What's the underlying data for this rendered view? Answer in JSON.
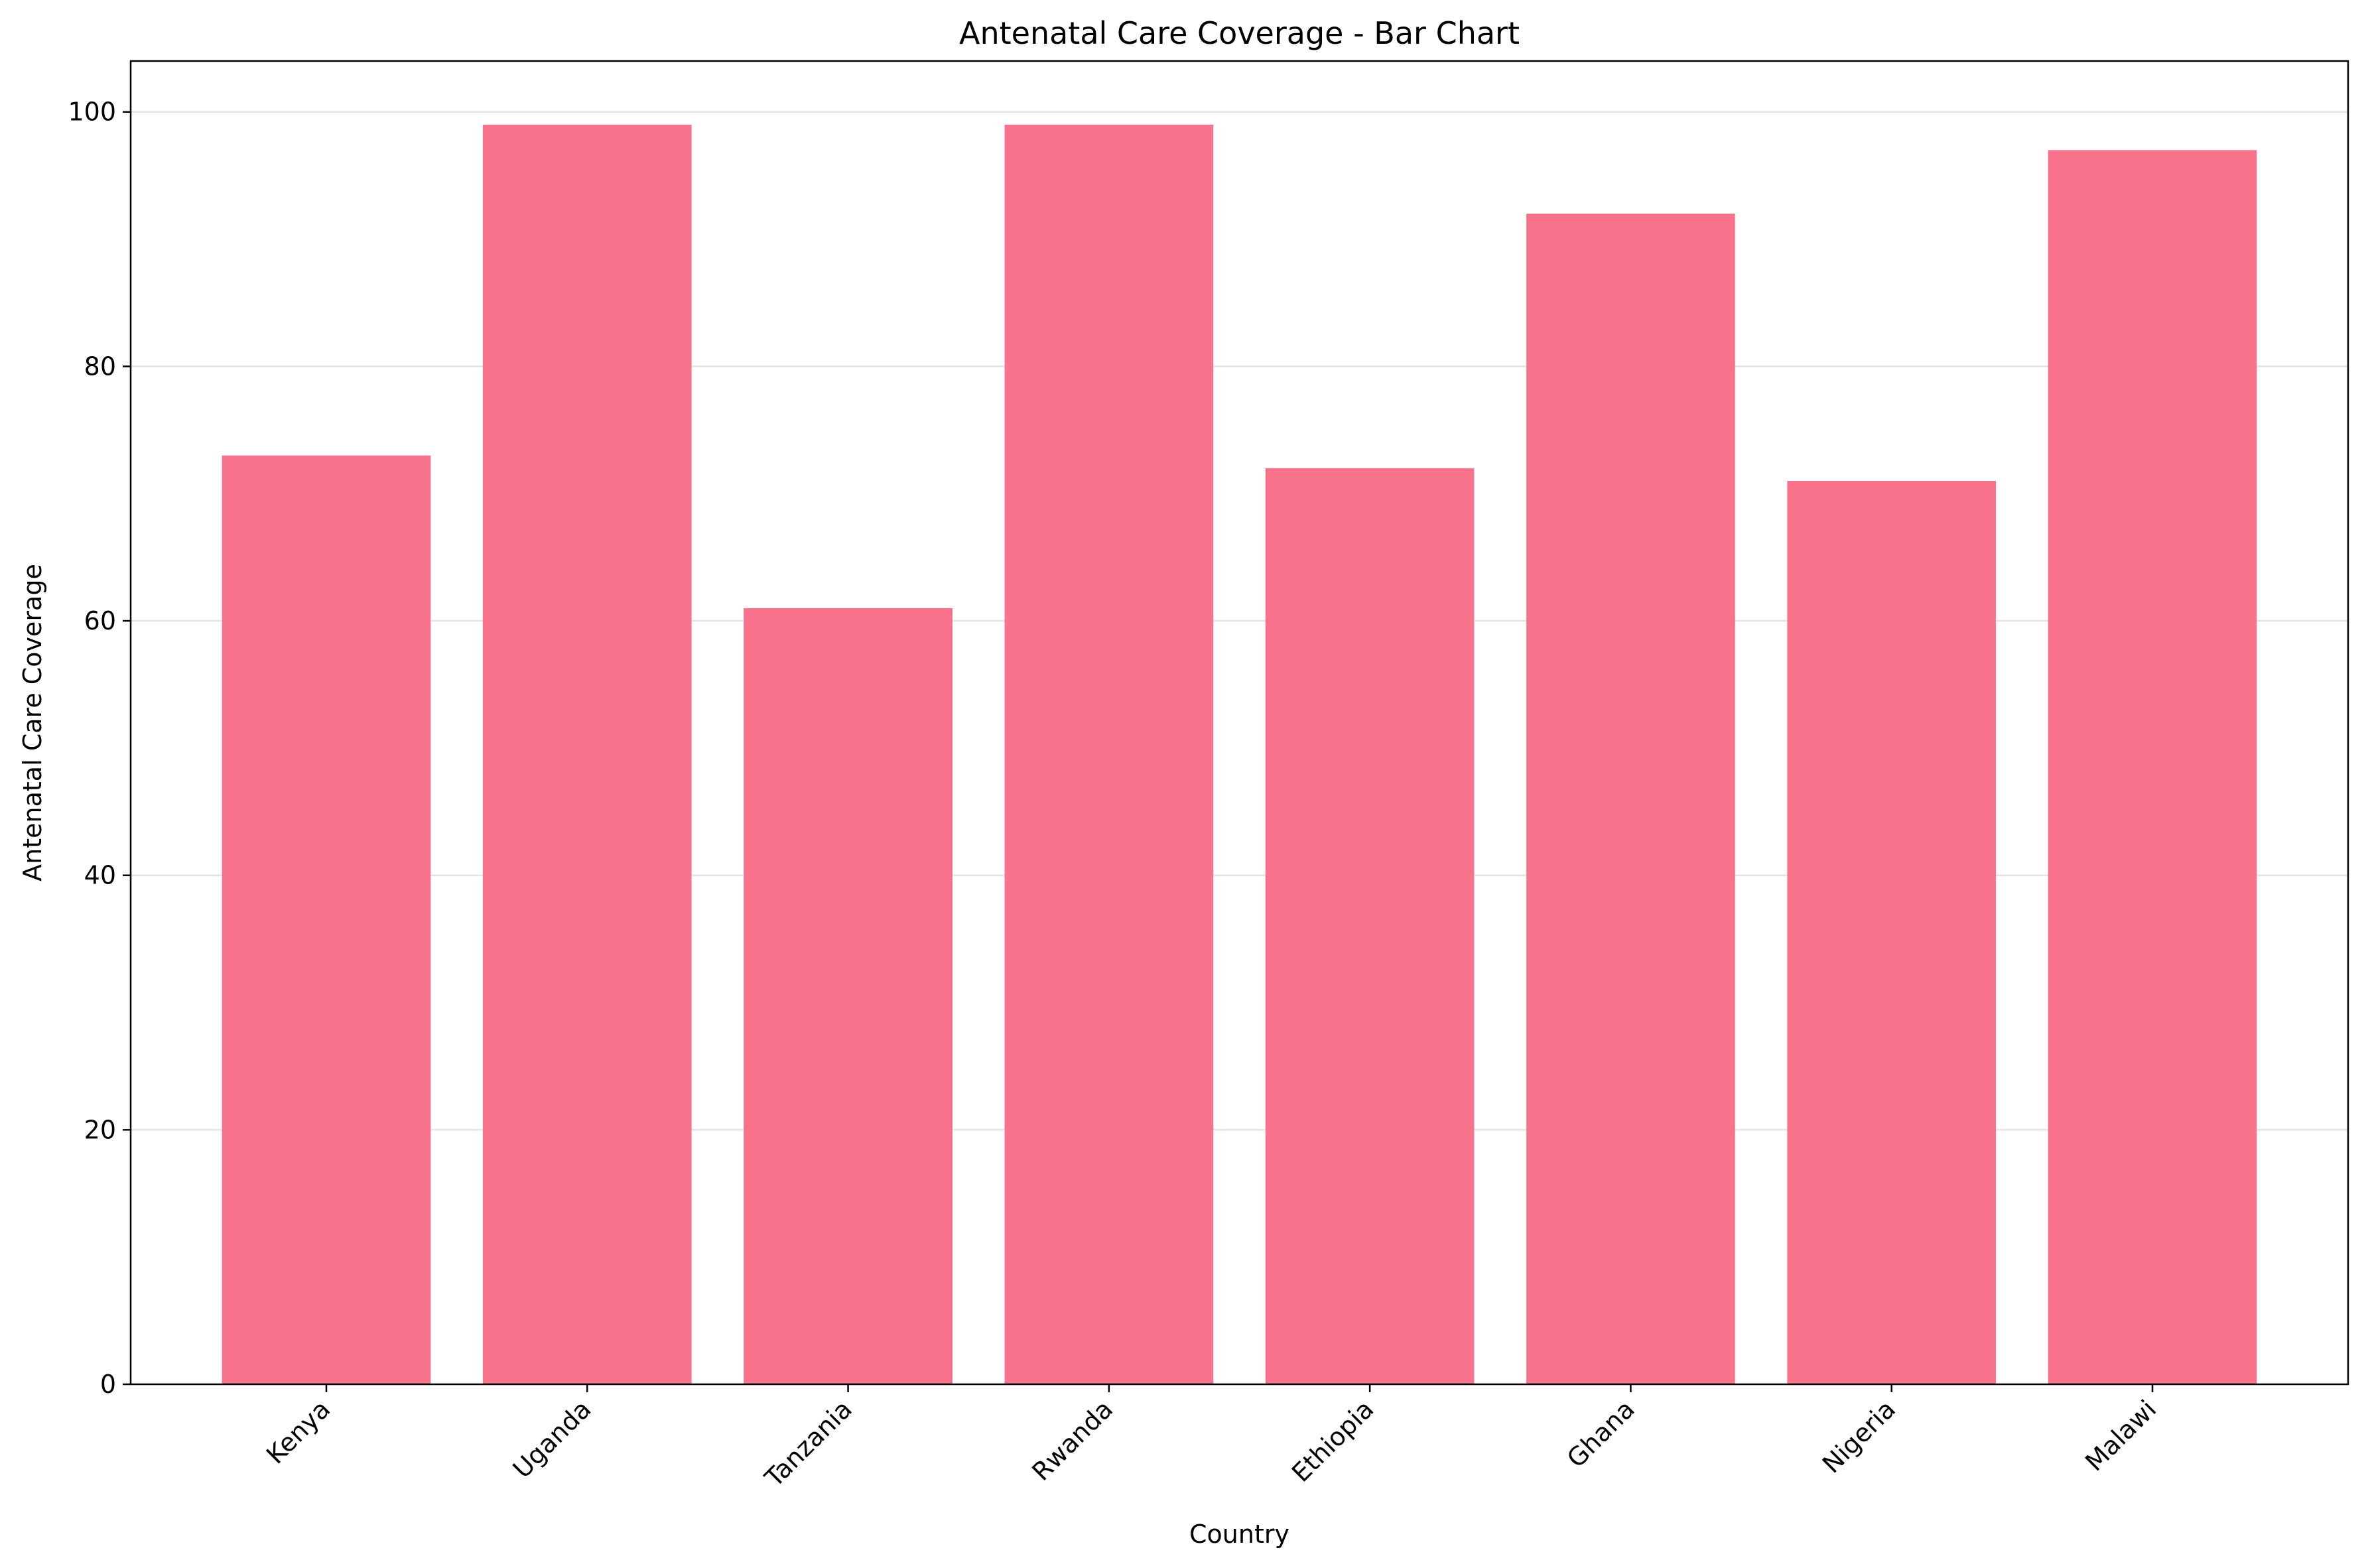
{
  "chart_data": {
    "type": "bar",
    "title": "Antenatal Care Coverage - Bar Chart",
    "xlabel": "Country",
    "ylabel": "Antenatal Care Coverage",
    "categories": [
      "Kenya",
      "Uganda",
      "Tanzania",
      "Rwanda",
      "Ethiopia",
      "Ghana",
      "Nigeria",
      "Malawi"
    ],
    "values": [
      73,
      99,
      61,
      99,
      72,
      92,
      71,
      97
    ],
    "ylim": [
      0,
      104
    ],
    "yticks": [
      0,
      20,
      40,
      60,
      80,
      100
    ],
    "grid": "y-only",
    "bar_color": "#f7728a",
    "legend": "none"
  }
}
